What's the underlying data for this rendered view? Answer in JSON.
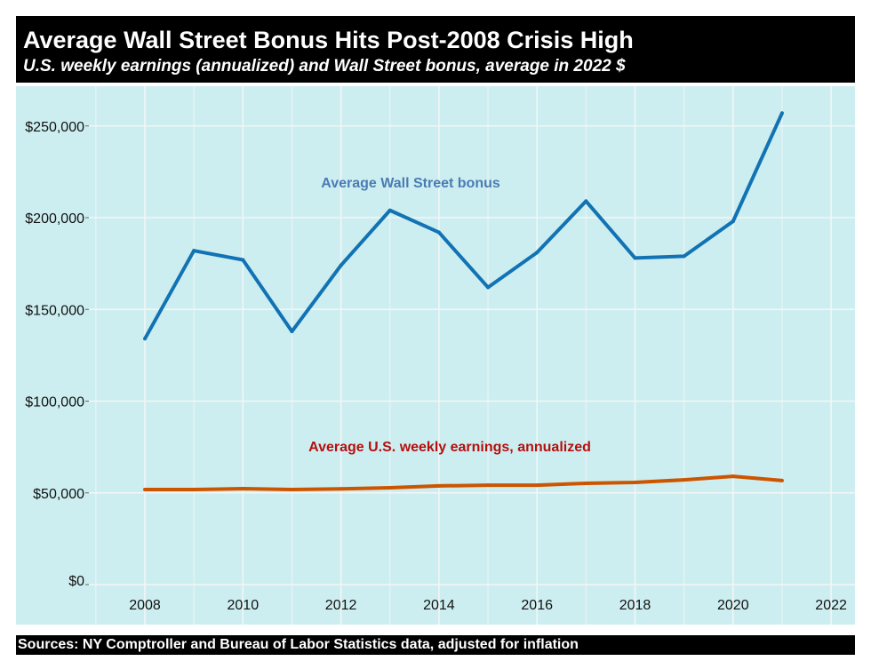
{
  "chart_data": {
    "type": "line",
    "title": "Average Wall Street Bonus Hits Post-2008 Crisis High",
    "subtitle": "U.S. weekly earnings (annualized) and Wall Street bonus, average in 2022 $",
    "source": "Sources: NY Comptroller and Bureau of Labor Statistics data, adjusted for inflation",
    "x": [
      2008,
      2009,
      2010,
      2011,
      2012,
      2013,
      2014,
      2015,
      2016,
      2017,
      2018,
      2019,
      2020,
      2021
    ],
    "x_ticks": [
      "2008",
      "2010",
      "2012",
      "2014",
      "2016",
      "2018",
      "2020",
      "2022"
    ],
    "y_ticks": [
      "$0",
      "$50,000",
      "$100,000",
      "$150,000",
      "$200,000",
      "$250,000"
    ],
    "xlim": [
      2007,
      2022.5
    ],
    "ylim": [
      0,
      262000
    ],
    "grid": true,
    "series": [
      {
        "name": "Average Wall Street bonus",
        "color": "#1273b4",
        "values": [
          134000,
          182000,
          177000,
          138000,
          174000,
          204000,
          192000,
          162000,
          181000,
          209000,
          178000,
          179000,
          198000,
          257000
        ]
      },
      {
        "name": "Average U.S. weekly earnings, annualized",
        "color": "#cc5500",
        "label_color": "#b40f0f",
        "values": [
          51800,
          51800,
          52300,
          51800,
          52200,
          52800,
          53800,
          54200,
          54200,
          55200,
          55700,
          57100,
          59000,
          56700
        ]
      }
    ],
    "background": "#cdeef0"
  }
}
